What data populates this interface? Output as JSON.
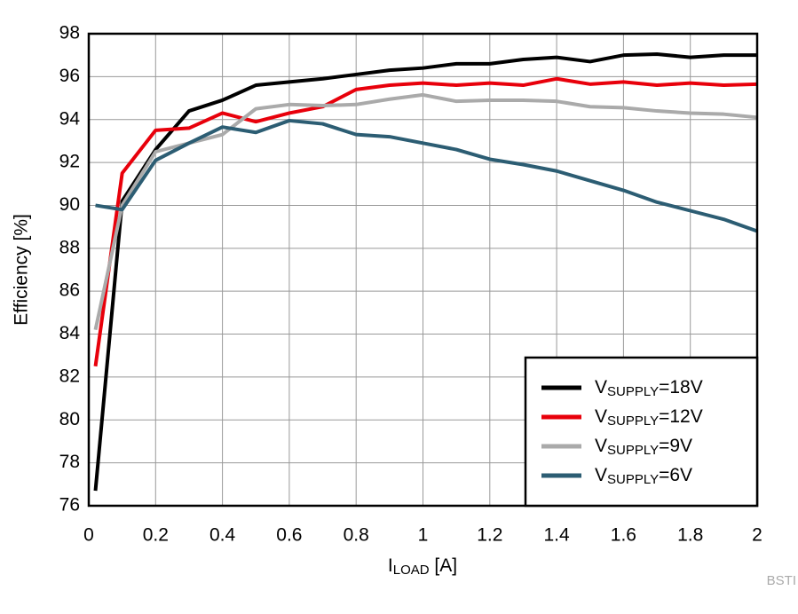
{
  "chart_data": {
    "type": "line",
    "xlabel": "ILOAD [A]",
    "ylabel": "Efficiency [%]",
    "watermark": "BSTI",
    "x": [
      0.02,
      0.1,
      0.2,
      0.3,
      0.4,
      0.5,
      0.6,
      0.7,
      0.8,
      0.9,
      1.0,
      1.1,
      1.2,
      1.3,
      1.4,
      1.5,
      1.6,
      1.7,
      1.8,
      1.9,
      2.0
    ],
    "series": [
      {
        "name": "VSUPPLY=18V",
        "color": "#000000",
        "values": [
          76.7,
          90.2,
          92.6,
          94.4,
          94.9,
          95.6,
          95.75,
          95.9,
          96.1,
          96.3,
          96.4,
          96.6,
          96.6,
          96.8,
          96.9,
          96.7,
          97.0,
          97.05,
          96.9,
          97.0,
          97.0
        ]
      },
      {
        "name": "VSUPPLY=12V",
        "color": "#e8000b",
        "values": [
          82.5,
          91.5,
          93.5,
          93.6,
          94.3,
          93.9,
          94.3,
          94.6,
          95.4,
          95.6,
          95.7,
          95.6,
          95.7,
          95.6,
          95.9,
          95.65,
          95.75,
          95.6,
          95.7,
          95.6,
          95.65
        ]
      },
      {
        "name": "VSUPPLY=9V",
        "color": "#aaaaaa",
        "values": [
          84.2,
          90.0,
          92.5,
          92.9,
          93.3,
          94.5,
          94.7,
          94.65,
          94.7,
          94.95,
          95.15,
          94.85,
          94.9,
          94.9,
          94.85,
          94.6,
          94.55,
          94.4,
          94.3,
          94.25,
          94.1
        ]
      },
      {
        "name": "VSUPPLY=6V",
        "color": "#2c5d73",
        "values": [
          90.0,
          89.8,
          92.1,
          92.9,
          93.65,
          93.4,
          93.95,
          93.8,
          93.3,
          93.2,
          92.9,
          92.6,
          92.15,
          91.9,
          91.6,
          91.15,
          90.7,
          90.15,
          89.75,
          89.35,
          88.8
        ]
      }
    ],
    "xlim": [
      0,
      2
    ],
    "xticks": [
      0,
      0.2,
      0.4,
      0.6,
      0.8,
      1,
      1.2,
      1.4,
      1.6,
      1.8,
      2
    ],
    "ylim": [
      76,
      98
    ],
    "yticks": [
      76,
      78,
      80,
      82,
      84,
      86,
      88,
      90,
      92,
      94,
      96,
      98
    ],
    "grid": true,
    "legend": "lower right"
  }
}
